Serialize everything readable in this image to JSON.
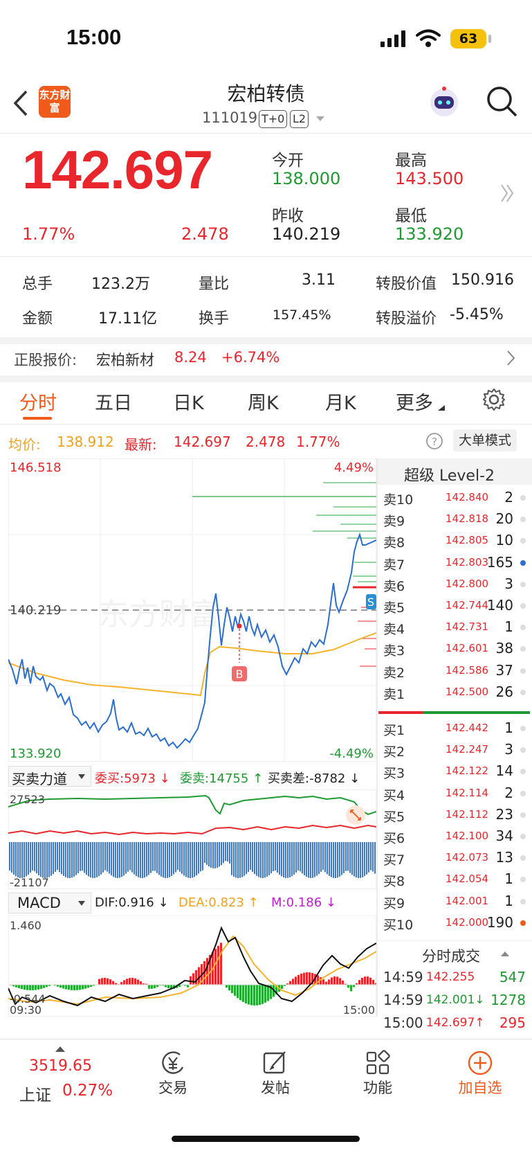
{
  "status": {
    "time": "15:00",
    "battery": "63"
  },
  "nav": {
    "title": "宏柏转债",
    "code": "111019",
    "tag1": "T+0",
    "tag2": "L2",
    "logo": "东方财富"
  },
  "quote": {
    "price": "142.697",
    "change_pct": "1.77%",
    "change": "2.478",
    "open_label": "今开",
    "open": "138.000",
    "high_label": "最高",
    "high": "143.500",
    "prev_close_label": "昨收",
    "prev_close": "140.219",
    "low_label": "最低",
    "low": "133.920"
  },
  "stats": [
    {
      "label": "总手",
      "value": "123.2万"
    },
    {
      "label": "量比",
      "value": "3.11"
    },
    {
      "label": "转股价值",
      "value": "150.916"
    },
    {
      "label": "金额",
      "value": "17.11亿"
    },
    {
      "label": "换手",
      "value": "157.45%"
    },
    {
      "label": "转股溢价",
      "value": "-5.45%"
    }
  ],
  "underlying": {
    "label": "正股报价:",
    "name": "宏柏新材",
    "price": "8.24",
    "change": "+6.74%"
  },
  "tabs": [
    "分时",
    "五日",
    "日K",
    "周K",
    "月K",
    "更多"
  ],
  "info": {
    "avg_label": "均价:",
    "avg": "138.912",
    "last_label": "最新:",
    "last": "142.697",
    "chg": "2.478",
    "pct": "1.77%",
    "mode_button": "大单模式"
  },
  "chart": {
    "y_top": "146.518",
    "y_mid": "140.219",
    "y_bot": "133.920",
    "pct_top": "4.49%",
    "pct_bot": "-4.49%",
    "watermark": "东方财富",
    "marker_b": "B",
    "marker_s": "S"
  },
  "flow": {
    "name": "买卖力道",
    "buy_label": "委买:",
    "buy": "5973",
    "sell_label": "委卖:",
    "sell": "14755",
    "diff_label": "买卖差:",
    "diff": "-8782",
    "y_top": "27523",
    "y_bot": "-21107"
  },
  "macd": {
    "name": "MACD",
    "dif_label": "DIF:",
    "dif": "0.916",
    "dea_label": "DEA:",
    "dea": "0.823",
    "m_label": "M:",
    "m": "0.186",
    "y_top": "1.460",
    "y_bot": "-0.544",
    "t_start": "09:30",
    "t_end": "15:00"
  },
  "level2": {
    "title": "超级 Level-2"
  },
  "asks": [
    {
      "label": "卖10",
      "price": "142.840",
      "vol": "2"
    },
    {
      "label": "卖9",
      "price": "142.818",
      "vol": "20"
    },
    {
      "label": "卖8",
      "price": "142.805",
      "vol": "10"
    },
    {
      "label": "卖7",
      "price": "142.803",
      "vol": "165"
    },
    {
      "label": "卖6",
      "price": "142.800",
      "vol": "3"
    },
    {
      "label": "卖5",
      "price": "142.744",
      "vol": "140"
    },
    {
      "label": "卖4",
      "price": "142.731",
      "vol": "1"
    },
    {
      "label": "卖3",
      "price": "142.601",
      "vol": "38"
    },
    {
      "label": "卖2",
      "price": "142.586",
      "vol": "37"
    },
    {
      "label": "卖1",
      "price": "142.500",
      "vol": "26"
    }
  ],
  "bids": [
    {
      "label": "买1",
      "price": "142.442",
      "vol": "1"
    },
    {
      "label": "买2",
      "price": "142.247",
      "vol": "3"
    },
    {
      "label": "买3",
      "price": "142.122",
      "vol": "14"
    },
    {
      "label": "买4",
      "price": "142.114",
      "vol": "2"
    },
    {
      "label": "买5",
      "price": "142.112",
      "vol": "23"
    },
    {
      "label": "买6",
      "price": "142.100",
      "vol": "34"
    },
    {
      "label": "买7",
      "price": "142.073",
      "vol": "13"
    },
    {
      "label": "买8",
      "price": "142.054",
      "vol": "1"
    },
    {
      "label": "买9",
      "price": "142.001",
      "vol": "1"
    },
    {
      "label": "买10",
      "price": "142.000",
      "vol": "190"
    }
  ],
  "ticks_title": "分时成交",
  "ticks": [
    {
      "time": "14:59",
      "price": "142.255",
      "vol": "547"
    },
    {
      "time": "14:59",
      "price": "142.001↓",
      "vol": "1278"
    },
    {
      "time": "15:00",
      "price": "142.697↑",
      "vol": "295"
    }
  ],
  "bottom": {
    "index_value": "3519.65",
    "index_name": "上证",
    "index_pct": "0.27%",
    "trade": "交易",
    "post": "发帖",
    "func": "功能",
    "watch": "加自选"
  },
  "colors": {
    "up": "#e8262b",
    "down": "#1f9a32",
    "accent": "#f05a1a",
    "price_line": "#2a6fd0",
    "avg_line": "#f7b32b"
  }
}
